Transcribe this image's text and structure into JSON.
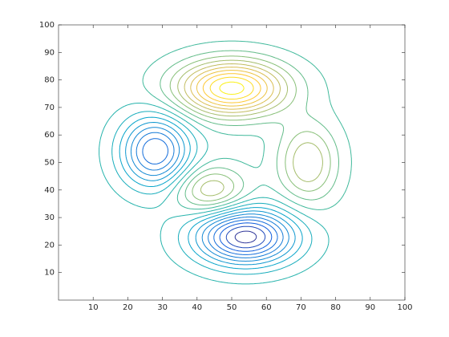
{
  "chart_data": {
    "type": "contour",
    "xlim": [
      0,
      100
    ],
    "ylim": [
      0,
      100
    ],
    "xticks": [
      10,
      20,
      30,
      40,
      50,
      60,
      70,
      80,
      90,
      100
    ],
    "yticks": [
      10,
      20,
      30,
      40,
      50,
      60,
      70,
      80,
      90,
      100
    ],
    "peaks": [
      {
        "x": 50,
        "y": 77,
        "height": 1.0,
        "sx": 11,
        "sy": 7
      },
      {
        "x": 54,
        "y": 23,
        "height": -1.0,
        "sx": 10,
        "sy": 7
      },
      {
        "x": 28,
        "y": 54,
        "height": -0.75,
        "sx": 7,
        "sy": 9
      },
      {
        "x": 72,
        "y": 50,
        "height": 0.45,
        "sx": 6,
        "sy": 10
      },
      {
        "x": 44,
        "y": 40,
        "height": 0.45,
        "sx": 7,
        "sy": 6
      }
    ],
    "levels": [
      -0.95,
      -0.85,
      -0.75,
      -0.65,
      -0.55,
      -0.45,
      -0.35,
      -0.25,
      -0.15,
      -0.05,
      0.05,
      0.15,
      0.25,
      0.35,
      0.45,
      0.55,
      0.65,
      0.75,
      0.85,
      0.95
    ],
    "clim": [
      -1,
      1
    ],
    "colormap": [
      "#352a87",
      "#0f5cdd",
      "#1481d6",
      "#06a4ca",
      "#2eb7a4",
      "#87bf77",
      "#d1bb59",
      "#fec832",
      "#f9fb0e"
    ]
  }
}
